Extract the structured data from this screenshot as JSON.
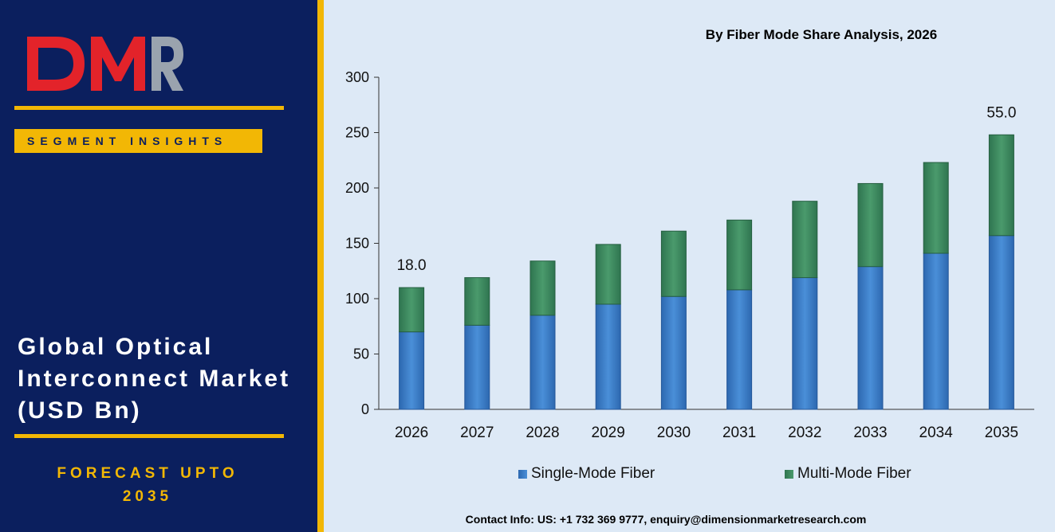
{
  "brand": {
    "logo_text": "DMR",
    "segment_label": "SEGMENT INSIGHTS",
    "market_title": "Global Optical\nInterconnect Market\n(USD Bn)",
    "forecast": "FORECAST UPTO\n2035"
  },
  "contact": "Contact Info: US: +1 732 369 9777, enquiry@dimensionmarketresearch.com",
  "colors": {
    "panel": "#0b1f5e",
    "accent": "#f2b705",
    "single_mode": "#3a7cc9",
    "multi_mode": "#3c8a5e",
    "logo_red": "#e3232a",
    "logo_grey": "#9aa3ae"
  },
  "chart_data": {
    "type": "bar",
    "stacked": true,
    "title": "By Fiber Mode Share Analysis, 2026",
    "categories": [
      "2026",
      "2027",
      "2028",
      "2029",
      "2030",
      "2031",
      "2032",
      "2033",
      "2034",
      "2035"
    ],
    "series": [
      {
        "name": "Single-Mode Fiber",
        "values": [
          70,
          76,
          85,
          95,
          102,
          108,
          119,
          129,
          141,
          157
        ]
      },
      {
        "name": "Multi-Mode Fiber",
        "values": [
          40,
          43,
          49,
          54,
          59,
          63,
          69,
          75,
          82,
          91
        ]
      }
    ],
    "annotations": [
      {
        "category": "2026",
        "label": "18.0"
      },
      {
        "category": "2035",
        "label": "55.0"
      }
    ],
    "yticks": [
      "0",
      "50",
      "100",
      "150",
      "200",
      "250",
      "300"
    ],
    "ylim": [
      0,
      300
    ],
    "xlabel": "",
    "ylabel": "",
    "grid": false,
    "legend_position": "bottom"
  }
}
